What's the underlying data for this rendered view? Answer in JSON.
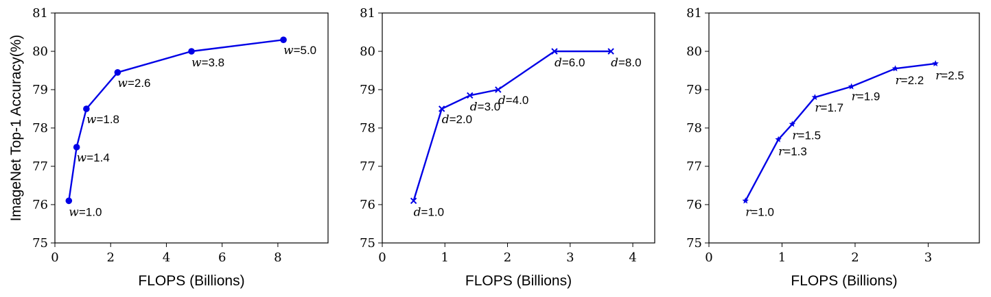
{
  "colors": {
    "series": "#0000e6"
  },
  "figure": {
    "ylabel": "ImageNet Top-1 Accuracy(%)"
  },
  "chart_data": [
    {
      "type": "line",
      "xlabel": "FLOPS (Billions)",
      "ylabel": "ImageNet Top-1 Accuracy(%)",
      "xlim": [
        0,
        9.8
      ],
      "ylim": [
        75,
        81
      ],
      "xticks": [
        0,
        2,
        4,
        6,
        8
      ],
      "yticks": [
        75,
        76,
        77,
        78,
        79,
        80,
        81
      ],
      "marker": "circle",
      "grid": false,
      "x": [
        0.5,
        0.78,
        1.13,
        2.25,
        4.9,
        8.2
      ],
      "y": [
        76.1,
        77.5,
        78.5,
        79.45,
        80.0,
        80.3
      ],
      "point_labels": [
        {
          "var": "w",
          "text": "=1.0"
        },
        {
          "var": "w",
          "text": "=1.4"
        },
        {
          "var": "w",
          "text": "=1.8"
        },
        {
          "var": "w",
          "text": "=2.6"
        },
        {
          "var": "w",
          "text": "=3.8"
        },
        {
          "var": "w",
          "text": "=5.0"
        }
      ]
    },
    {
      "type": "line",
      "xlabel": "FLOPS (Billions)",
      "ylabel": "",
      "xlim": [
        0,
        4.35
      ],
      "ylim": [
        75,
        81
      ],
      "xticks": [
        0,
        1,
        2,
        3,
        4
      ],
      "yticks": [
        75,
        76,
        77,
        78,
        79,
        80,
        81
      ],
      "marker": "x",
      "grid": false,
      "x": [
        0.5,
        0.95,
        1.4,
        1.85,
        2.75,
        3.65
      ],
      "y": [
        76.1,
        78.5,
        78.85,
        79.0,
        80.0,
        80.0
      ],
      "point_labels": [
        {
          "var": "d",
          "text": "=1.0"
        },
        {
          "var": "d",
          "text": "=2.0"
        },
        {
          "var": "d",
          "text": "=3.0"
        },
        {
          "var": "d",
          "text": "=4.0"
        },
        {
          "var": "d",
          "text": "=6.0"
        },
        {
          "var": "d",
          "text": "=8.0"
        }
      ]
    },
    {
      "type": "line",
      "xlabel": "FLOPS (Billions)",
      "ylabel": "",
      "xlim": [
        0,
        3.7
      ],
      "ylim": [
        75,
        81
      ],
      "xticks": [
        0,
        1,
        2,
        3
      ],
      "yticks": [
        75,
        76,
        77,
        78,
        79,
        80,
        81
      ],
      "marker": "star",
      "grid": false,
      "x": [
        0.5,
        0.95,
        1.14,
        1.45,
        1.95,
        2.55,
        3.1
      ],
      "y": [
        76.1,
        77.7,
        78.1,
        78.8,
        79.08,
        79.55,
        79.68
      ],
      "point_labels": [
        {
          "var": "r",
          "text": "=1.0"
        },
        {
          "var": "r",
          "text": "=1.3"
        },
        {
          "var": "r",
          "text": "=1.5"
        },
        {
          "var": "r",
          "text": "=1.7"
        },
        {
          "var": "r",
          "text": "=1.9"
        },
        {
          "var": "r",
          "text": "=2.2"
        },
        {
          "var": "r",
          "text": "=2.5"
        }
      ]
    }
  ]
}
